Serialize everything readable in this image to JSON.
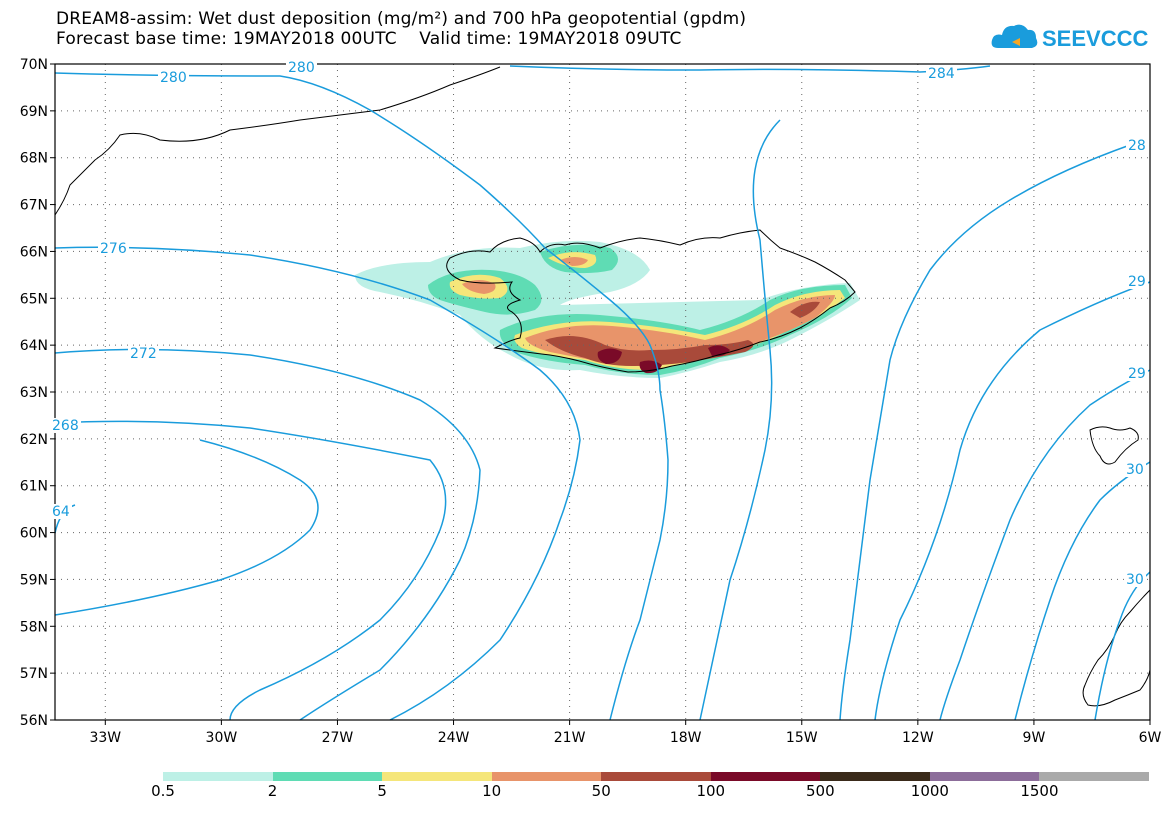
{
  "title_line1": "DREAM8-assim: Wet dust deposition (mg/m²) and 700 hPa geopotential (gpdm)",
  "title_line2": "Forecast base time: 19MAY2018 00UTC    Valid time: 19MAY2018 09UTC",
  "logo_text": "SEEVCCC",
  "colors": {
    "contour": "#1a9cdc",
    "coast": "#000000",
    "grid": "#666666"
  },
  "axes": {
    "lat_labels": [
      "70N",
      "69N",
      "68N",
      "67N",
      "66N",
      "65N",
      "64N",
      "63N",
      "62N",
      "61N",
      "60N",
      "59N",
      "58N",
      "57N",
      "56N"
    ],
    "lon_labels": [
      "33W",
      "30W",
      "27W",
      "24W",
      "21W",
      "18W",
      "15W",
      "12W",
      "9W",
      "6W"
    ],
    "lat_range": [
      56,
      70
    ],
    "lon_range": [
      -34.3,
      -6
    ]
  },
  "contour_labels": [
    "280",
    "280",
    "284",
    "28",
    "276",
    "29",
    "272",
    "29",
    "268",
    "30",
    "64",
    "30"
  ],
  "colorbar": {
    "colors": [
      "#bdf0e6",
      "#5fdcb4",
      "#f5e67a",
      "#e8946a",
      "#a94a3a",
      "#7a0a28",
      "#3a2a1a",
      "#8c6d9a",
      "#aaaaaa"
    ],
    "labels": [
      "0.5",
      "2",
      "5",
      "10",
      "50",
      "100",
      "500",
      "1000",
      "1500"
    ]
  }
}
